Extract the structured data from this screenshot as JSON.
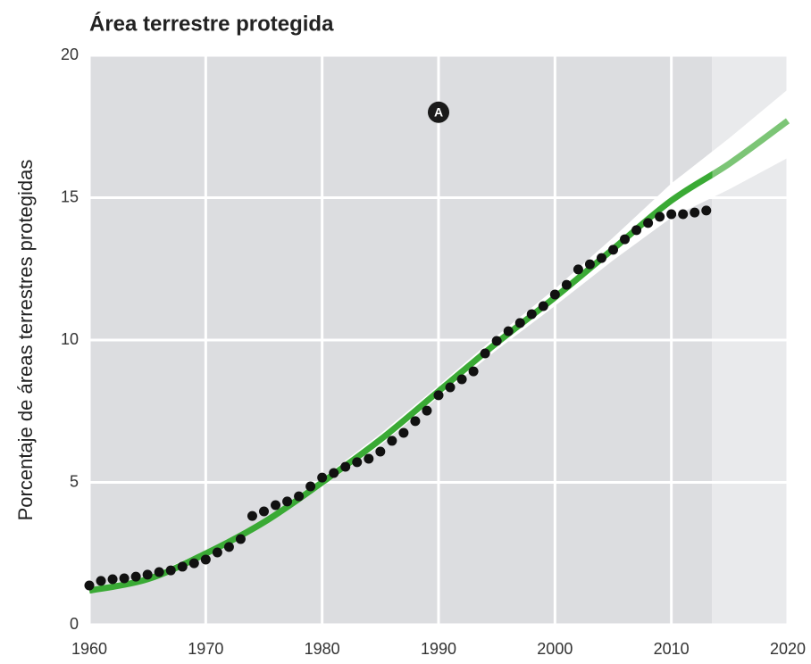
{
  "chart_data": {
    "type": "scatter",
    "title": "Área terrestre protegida",
    "y_label": "Porcentaje de áreas terrestres protegidas",
    "xlim": [
      1960,
      2020
    ],
    "xticks": [
      1960,
      1970,
      1980,
      1990,
      2000,
      2010,
      2020
    ],
    "ylim": [
      0,
      20
    ],
    "yticks": [
      0,
      5,
      10,
      15,
      20
    ],
    "grid": true,
    "projection_start": 2013.5,
    "points": {
      "color": "#111111",
      "x": [
        1960,
        1961,
        1962,
        1963,
        1964,
        1965,
        1966,
        1967,
        1968,
        1969,
        1970,
        1971,
        1972,
        1973,
        1974,
        1975,
        1976,
        1977,
        1978,
        1979,
        1980,
        1981,
        1982,
        1983,
        1984,
        1985,
        1986,
        1987,
        1988,
        1989,
        1990,
        1991,
        1992,
        1993,
        1994,
        1995,
        1996,
        1997,
        1998,
        1999,
        2000,
        2001,
        2002,
        2003,
        2004,
        2005,
        2006,
        2007,
        2008,
        2009,
        2010,
        2011,
        2012,
        2013
      ],
      "values": [
        1.38,
        1.54,
        1.6,
        1.63,
        1.69,
        1.76,
        1.85,
        1.91,
        2.04,
        2.16,
        2.29,
        2.54,
        2.73,
        3.01,
        3.82,
        3.98,
        4.2,
        4.33,
        4.51,
        4.86,
        5.17,
        5.33,
        5.55,
        5.71,
        5.83,
        6.08,
        6.46,
        6.74,
        7.15,
        7.52,
        8.06,
        8.34,
        8.62,
        8.9,
        9.53,
        9.97,
        10.31,
        10.6,
        10.91,
        11.19,
        11.6,
        11.94,
        12.48,
        12.66,
        12.88,
        13.17,
        13.54,
        13.86,
        14.11,
        14.33,
        14.42,
        14.42,
        14.48,
        14.55
      ]
    },
    "trend": {
      "color": "#3aaa35",
      "projection_color": "#7cc576",
      "x": [
        1960,
        1965,
        1970,
        1975,
        1980,
        1985,
        1990,
        1995,
        2000,
        2005,
        2010,
        2015,
        2020
      ],
      "values": [
        1.2,
        1.6,
        2.5,
        3.6,
        5.0,
        6.5,
        8.2,
        9.9,
        11.5,
        13.2,
        14.9,
        16.2,
        17.7
      ],
      "band_upper": [
        1.3,
        1.7,
        2.6,
        3.7,
        5.15,
        6.7,
        8.4,
        10.15,
        11.8,
        13.6,
        15.5,
        17.1,
        18.8
      ],
      "band_lower": [
        1.1,
        1.5,
        2.4,
        3.5,
        4.85,
        6.3,
        8.0,
        9.65,
        11.2,
        12.8,
        14.3,
        15.3,
        16.4
      ]
    },
    "annotations": [
      {
        "text": "A",
        "x": 1990,
        "y": 18
      }
    ]
  }
}
